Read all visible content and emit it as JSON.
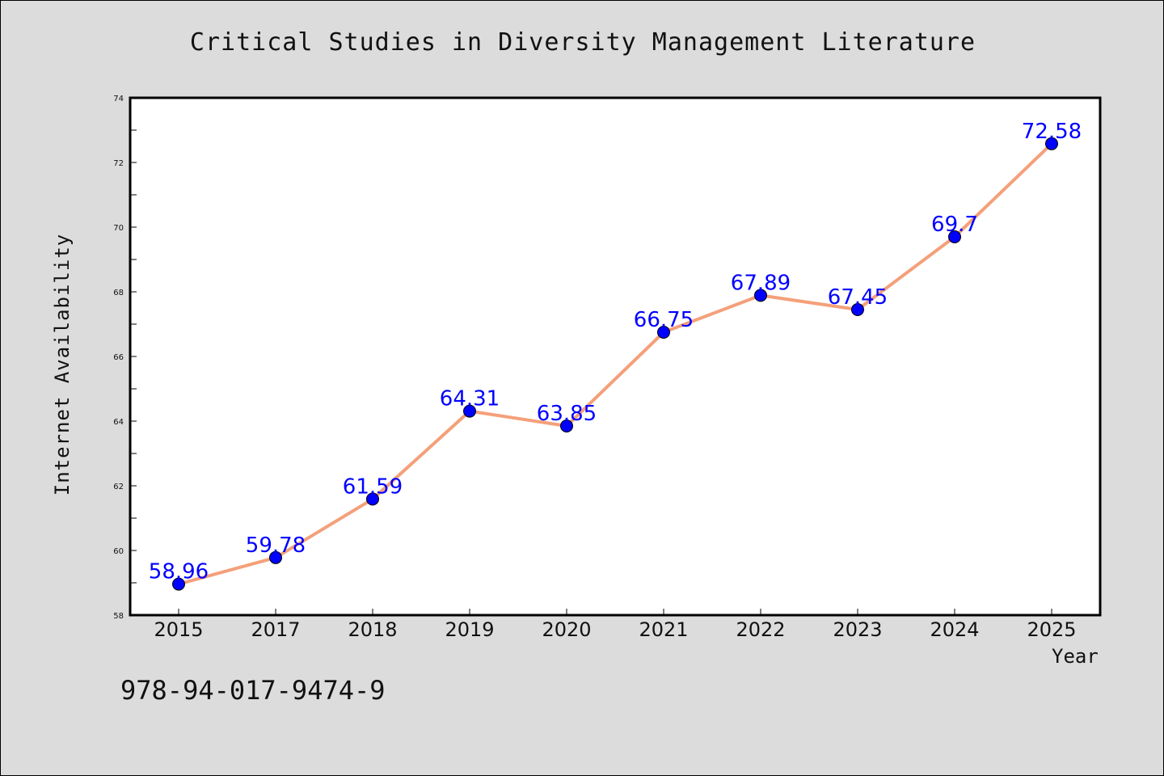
{
  "chart_data": {
    "type": "line",
    "title": "Critical Studies in Diversity Management Literature",
    "xlabel": "Year",
    "ylabel": "Internet Availability",
    "categories": [
      "2015",
      "2017",
      "2018",
      "2019",
      "2020",
      "2021",
      "2022",
      "2023",
      "2024",
      "2025"
    ],
    "series": [
      {
        "values": [
          58.96,
          59.78,
          61.59,
          64.31,
          63.85,
          66.75,
          67.89,
          67.45,
          69.7,
          72.58
        ],
        "labels": [
          "58.96",
          "59.78",
          "61.59",
          "64.31",
          "63.85",
          "66.75",
          "67.89",
          "67.45",
          "69.7",
          "72.58"
        ]
      }
    ],
    "ylim": [
      58,
      74
    ],
    "yticks": [
      58,
      60,
      62,
      64,
      66,
      68,
      70,
      72,
      74
    ],
    "grid": false,
    "line_color": "#f4a07a",
    "marker_color": "#0000ff",
    "label_color": "#0000ff"
  },
  "footer": {
    "code": "978-94-017-9474-9"
  }
}
